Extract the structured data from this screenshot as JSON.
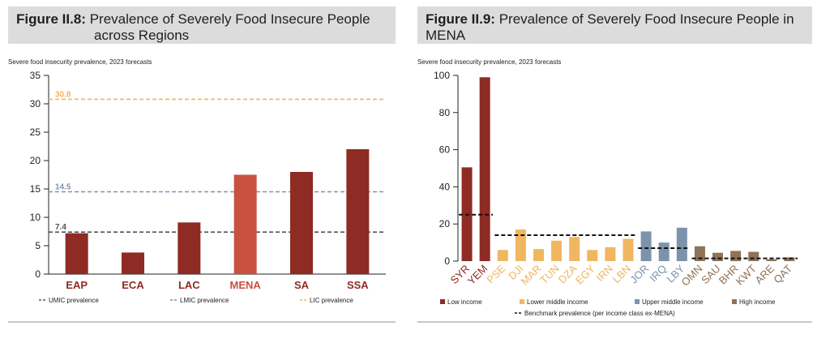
{
  "colors": {
    "low": "#8e2b24",
    "mena": "#c9513f",
    "lower_middle": "#f0b660",
    "upper_middle": "#7d93ad",
    "high": "#8f7258",
    "umic_line": "#555555",
    "lmic_line": "#7f93ab",
    "lic_line": "#f0b660",
    "benchmark": "#111111",
    "header_bg": "#dcdcdc"
  },
  "chart_data": [
    {
      "type": "bar",
      "figure_label": "Figure II.8:",
      "title": "Prevalence of Severely Food Insecure People across Regions",
      "title_line1": "Prevalence of Severely Food Insecure People",
      "title_line2": "across Regions",
      "subtitle": "Severe food insecurity prevalence, 2023 forecasts",
      "categories": [
        "EAP",
        "ECA",
        "LAC",
        "MENA",
        "SA",
        "SSA"
      ],
      "values": [
        7.2,
        3.8,
        9.1,
        17.5,
        18.0,
        22.0
      ],
      "highlight": "MENA",
      "ylim": [
        0,
        35
      ],
      "yticks": [
        0,
        5,
        10,
        15,
        20,
        25,
        30,
        35
      ],
      "reference_lines": [
        {
          "name": "UMIC prevalence",
          "value": 7.4,
          "label": "7.4",
          "color": "#555555"
        },
        {
          "name": "LMIC prevalence",
          "value": 14.5,
          "label": "14.5",
          "color": "#7f93ab"
        },
        {
          "name": "LIC prevalence",
          "value": 30.8,
          "label": "30.8",
          "color": "#f0b660"
        }
      ],
      "legend": [
        "UMIC prevalence",
        "LMIC prevalence",
        "LIC prevalence"
      ]
    },
    {
      "type": "bar",
      "figure_label": "Figure II.9:",
      "title": "Prevalence of Severely Food Insecure People in MENA",
      "title_line1": "Prevalence of Severely Food Insecure People in",
      "title_line2": "MENA",
      "subtitle": "Severe food insecurity prevalence, 2023 forecasts",
      "categories": [
        "SYR",
        "YEM",
        "PSE",
        "DJI",
        "MAR",
        "TUN",
        "DZA",
        "EGY",
        "IRN",
        "LBN",
        "JOR",
        "IRQ",
        "LBY",
        "OMN",
        "SAU",
        "BHR",
        "KWT",
        "ARE",
        "QAT"
      ],
      "values": [
        50.5,
        99.0,
        6.0,
        17.0,
        6.5,
        11.0,
        13.0,
        6.0,
        7.5,
        12.0,
        16.0,
        10.0,
        18.0,
        8.0,
        4.5,
        5.5,
        5.0,
        1.0,
        2.0
      ],
      "groups": [
        "low",
        "low",
        "lower_middle",
        "lower_middle",
        "lower_middle",
        "lower_middle",
        "lower_middle",
        "lower_middle",
        "lower_middle",
        "lower_middle",
        "upper_middle",
        "upper_middle",
        "upper_middle",
        "high",
        "high",
        "high",
        "high",
        "high",
        "high"
      ],
      "ylim": [
        0,
        100
      ],
      "yticks": [
        0,
        20,
        40,
        60,
        80,
        100
      ],
      "benchmarks": [
        {
          "group": "low",
          "value": 25
        },
        {
          "group": "lower_middle",
          "value": 14
        },
        {
          "group": "upper_middle",
          "value": 7
        },
        {
          "group": "high",
          "value": 1.5
        }
      ],
      "legend": {
        "low": "Low income",
        "lower_middle": "Lower middle income",
        "upper_middle": "Upper middle income",
        "high": "High income",
        "benchmark": "Benchmark prevalence (per income class ex-MENA)"
      }
    }
  ]
}
